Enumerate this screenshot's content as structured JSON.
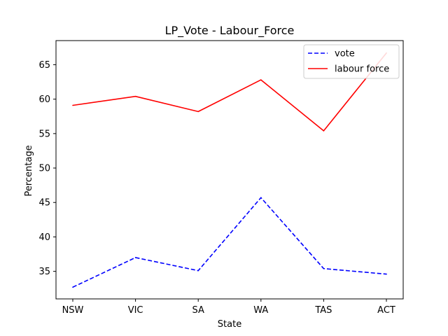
{
  "chart_data": {
    "type": "line",
    "title": "LP_Vote - Labour_Force",
    "xlabel": "State",
    "ylabel": "Percentage",
    "categories": [
      "NSW",
      "VIC",
      "SA",
      "WA",
      "TAS",
      "ACT"
    ],
    "ylim": [
      31.0,
      68.5
    ],
    "yticks": [
      35,
      40,
      45,
      50,
      55,
      60,
      65
    ],
    "grid": false,
    "legend_position": "top-right",
    "series": [
      {
        "name": "vote",
        "values": [
          32.7,
          37.0,
          35.1,
          45.7,
          35.4,
          34.6
        ],
        "color": "#0000ff",
        "style": "dashed"
      },
      {
        "name": "labour force",
        "values": [
          59.1,
          60.4,
          58.2,
          62.8,
          55.4,
          66.7
        ],
        "color": "#ff0000",
        "style": "solid"
      }
    ]
  }
}
